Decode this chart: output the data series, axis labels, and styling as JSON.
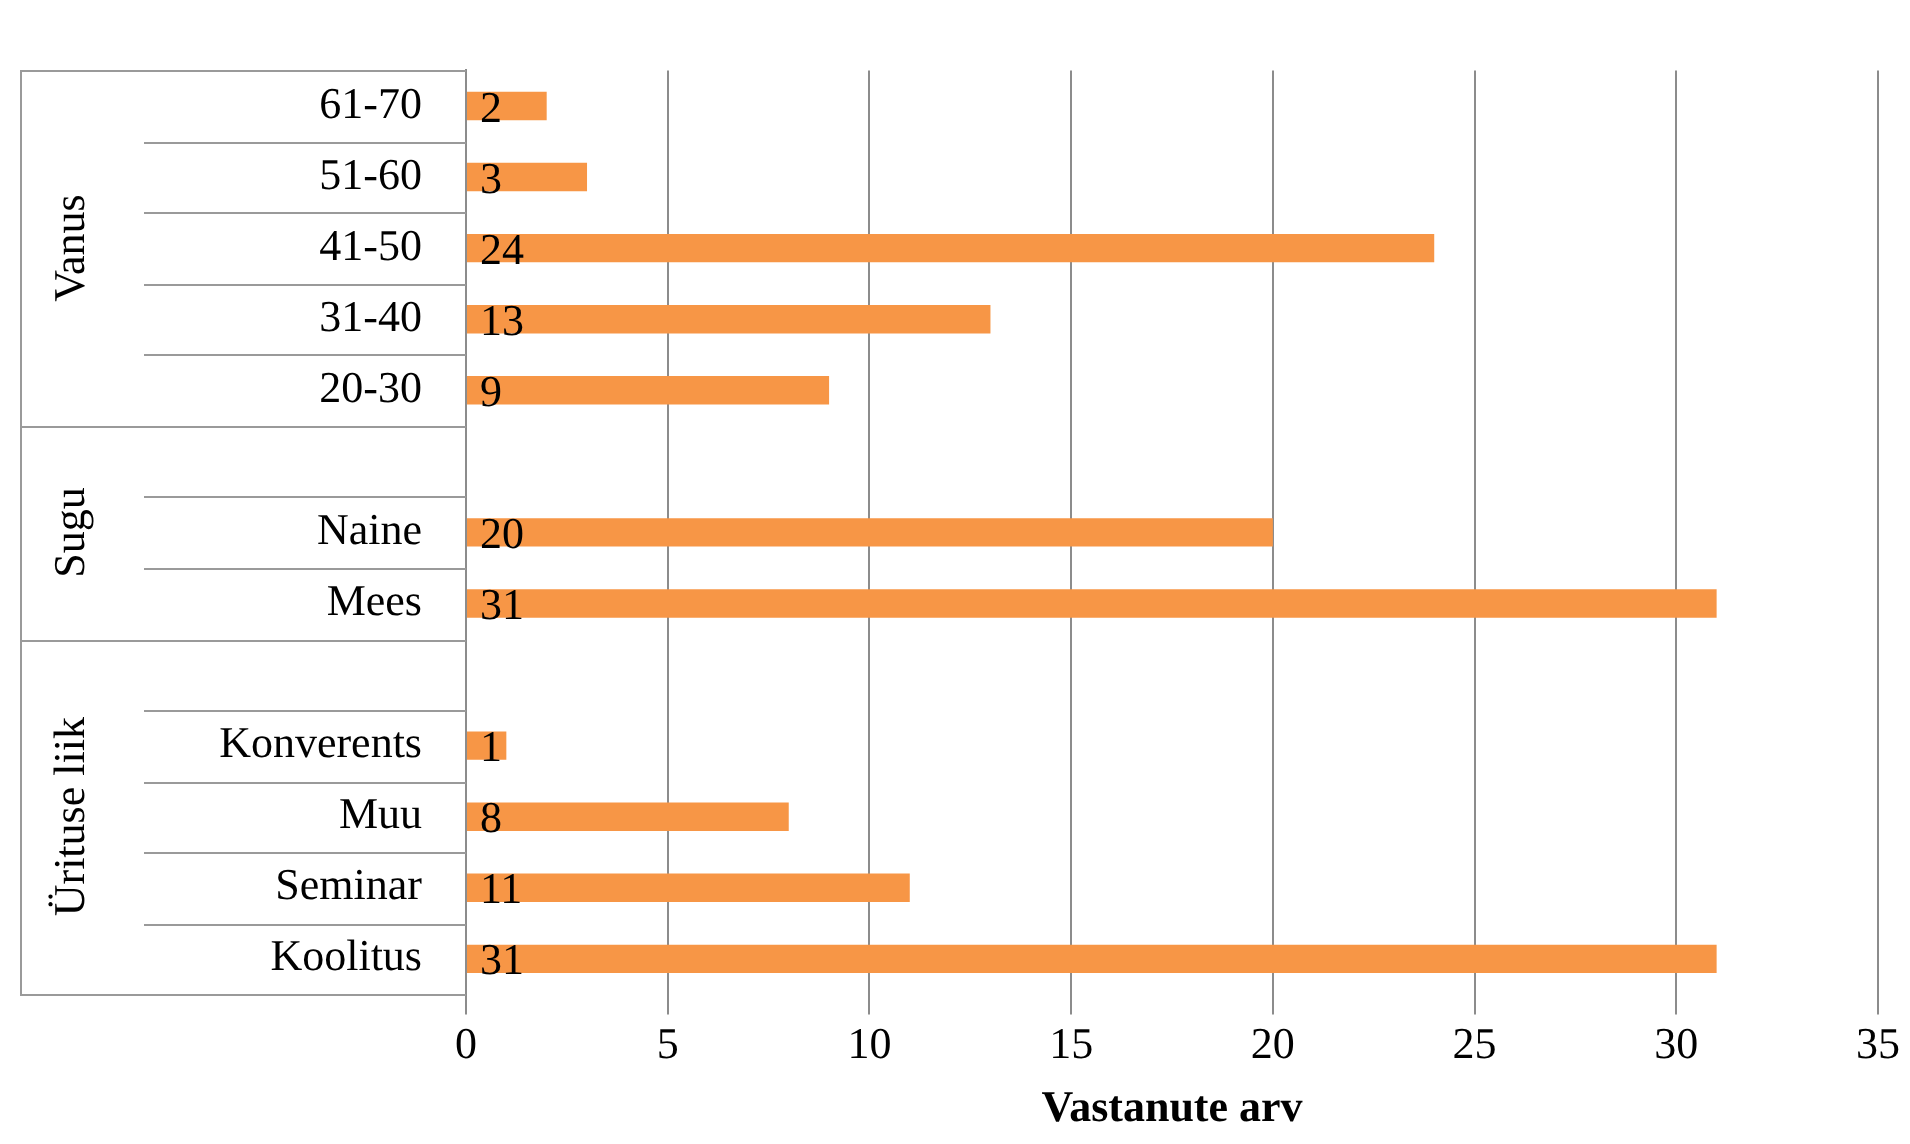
{
  "chart_data": {
    "type": "bar",
    "orientation": "horizontal",
    "xlabel": "Vastanute arv",
    "categories": [
      "61-70",
      "51-60",
      "41-50",
      "31-40",
      "20-30",
      null,
      "Naine",
      "Mees",
      null,
      "Konverents",
      "Muu",
      "Seminar",
      "Koolitus"
    ],
    "values": [
      2,
      3,
      24,
      13,
      9,
      null,
      20,
      31,
      null,
      1,
      8,
      11,
      31
    ],
    "color": "#f79646",
    "xlim": [
      0,
      35
    ],
    "xticks": [
      0,
      5,
      10,
      15,
      20,
      25,
      30,
      35
    ],
    "grid": "x",
    "data_labels": true,
    "legend": false,
    "annotations": [
      "Vanus",
      "Sugu",
      "Ürituse liik"
    ]
  }
}
